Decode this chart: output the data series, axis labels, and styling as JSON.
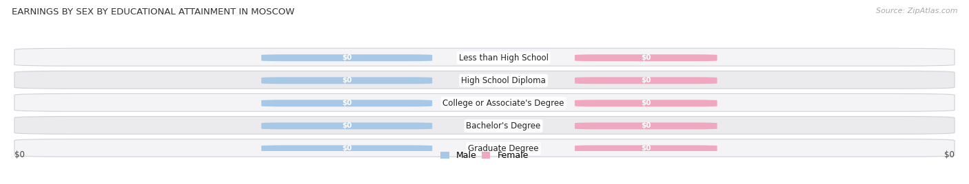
{
  "title": "EARNINGS BY SEX BY EDUCATIONAL ATTAINMENT IN MOSCOW",
  "source": "Source: ZipAtlas.com",
  "categories": [
    "Less than High School",
    "High School Diploma",
    "College or Associate's Degree",
    "Bachelor's Degree",
    "Graduate Degree"
  ],
  "male_color": "#a8c8e8",
  "female_color": "#f0a8c0",
  "male_label": "Male",
  "female_label": "Female",
  "bar_label": "$0",
  "title_fontsize": 9.5,
  "source_fontsize": 8,
  "category_fontsize": 8.5,
  "tick_label": "$0",
  "figsize": [
    14.06,
    2.68
  ],
  "dpi": 100,
  "row_bg_light": "#f4f4f6",
  "row_bg_dark": "#ebebee",
  "row_edge_color": "#d0d0d8"
}
